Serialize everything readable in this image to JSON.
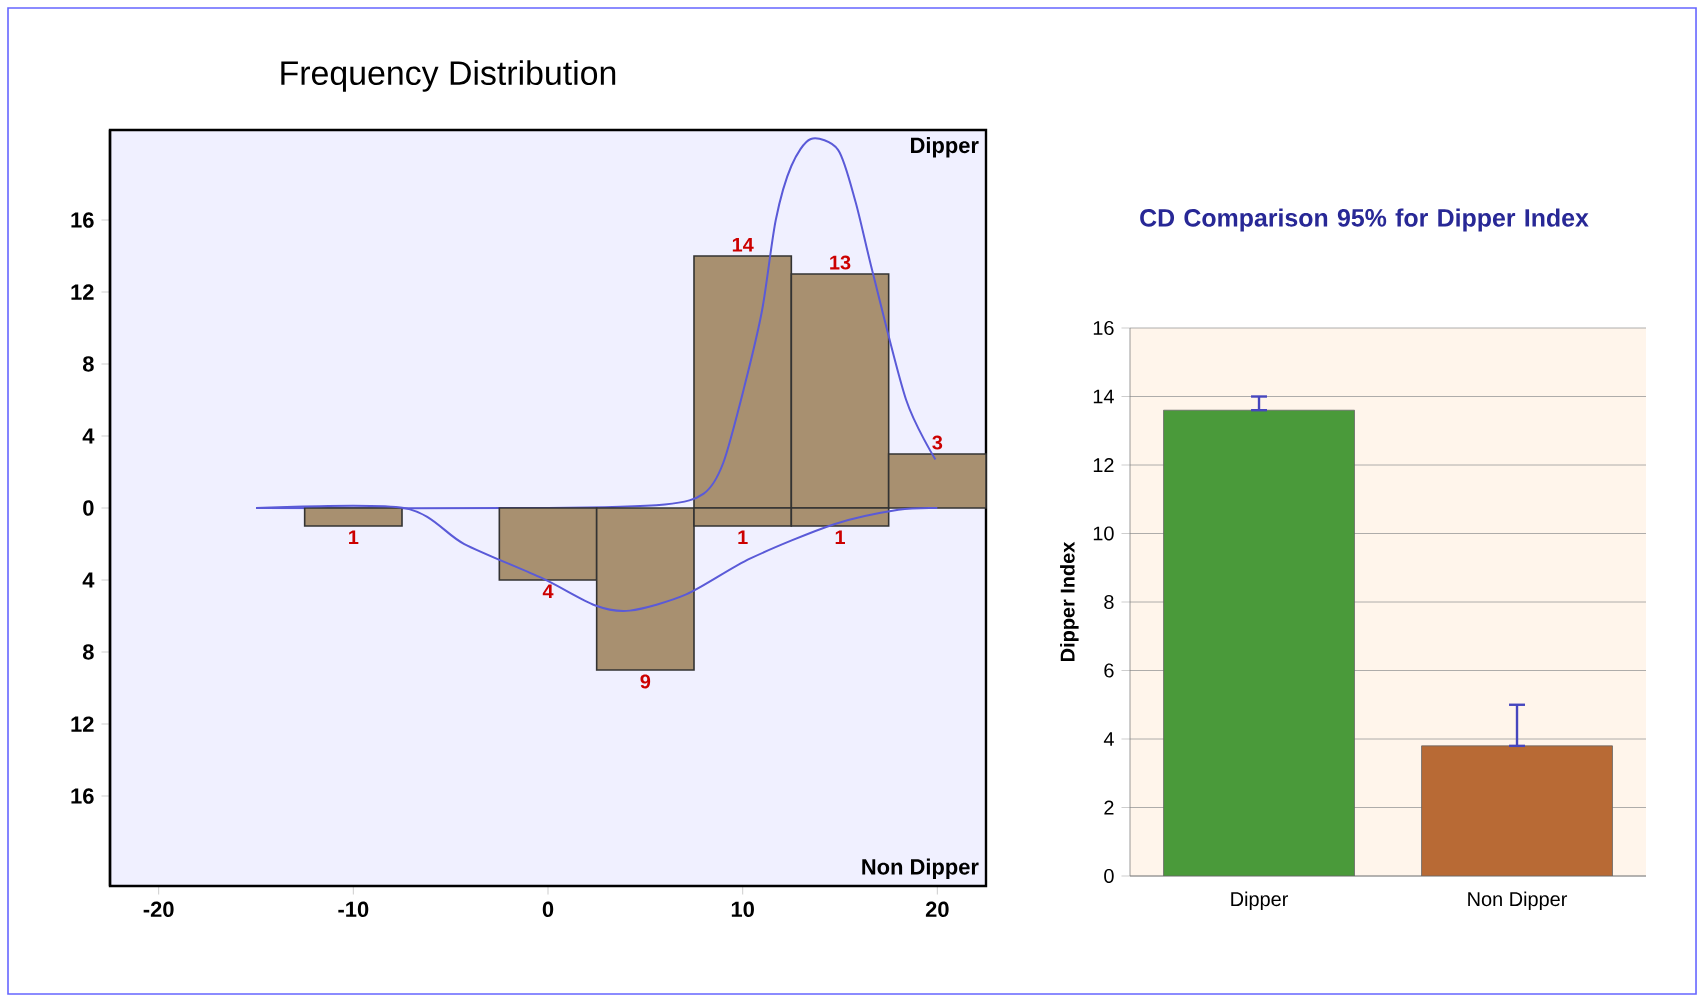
{
  "chart_data": [
    {
      "type": "histogram",
      "title": "Frequency Distribution",
      "bins": [
        -12.5,
        -7.5,
        -2.5,
        2.5,
        7.5,
        12.5,
        17.5,
        22.5
      ],
      "series": [
        {
          "color": "#a89070",
          "values": [
            null,
            null,
            null,
            null,
            14,
            13,
            3
          ],
          "value_labels": [
            null,
            null,
            null,
            null,
            "14",
            "13",
            "3"
          ]
        },
        {
          "color": "#a89070",
          "axis": "y2",
          "values": [
            1,
            null,
            4,
            9,
            1,
            1,
            null
          ],
          "value_labels": [
            "1",
            null,
            "4",
            "9",
            "1",
            "1",
            null
          ]
        },
        {
          "type": "line",
          "color": "#5a5ad8",
          "x": [
            -15,
            0,
            6,
            8,
            9,
            10.1,
            11,
            11.7,
            12.5,
            13.5,
            14.9,
            15.8,
            16.7,
            18.4,
            19.9
          ],
          "values": [
            0,
            0,
            0.2,
            0.8,
            2.5,
            6.8,
            11,
            16,
            19,
            20.5,
            19.9,
            17,
            13,
            6,
            2.7
          ]
        },
        {
          "type": "line",
          "color": "#5a5ad8",
          "axis": "y2",
          "x": [
            -15,
            -7.4,
            -4.3,
            -0.3,
            2.4,
            4.2,
            7.1,
            10.4,
            14.7,
            18,
            20
          ],
          "values": [
            0,
            0,
            2,
            3.9,
            5.4,
            5.7,
            4.8,
            2.8,
            0.9,
            0.1,
            0
          ]
        }
      ],
      "annotations": [
        "Dipper",
        "Non Dipper"
      ],
      "xlim": [
        -22.5,
        22.5
      ],
      "ylim": [
        -21,
        21
      ],
      "y2lim": [
        21,
        -21
      ],
      "xticks": [
        -20,
        -10,
        0,
        10,
        20
      ],
      "yticks": [
        0,
        4,
        8,
        12,
        16
      ],
      "y2ticks": [
        4,
        8,
        12,
        16
      ],
      "grid": false
    },
    {
      "type": "bar",
      "title": "CD Comparison 95% for Dipper Index",
      "ylabel": "Dipper Index",
      "categories": [
        "Dipper",
        "Non Dipper"
      ],
      "values": [
        13.6,
        3.8
      ],
      "colors": [
        "#4a9a3a",
        "#b86a35"
      ],
      "errors": [
        [
          13.6,
          14.0
        ],
        [
          3.8,
          5.0
        ]
      ],
      "ylim": [
        0,
        16
      ],
      "yticks": [
        0,
        2,
        4,
        6,
        8,
        10,
        12,
        14,
        16
      ],
      "grid": "y"
    }
  ]
}
